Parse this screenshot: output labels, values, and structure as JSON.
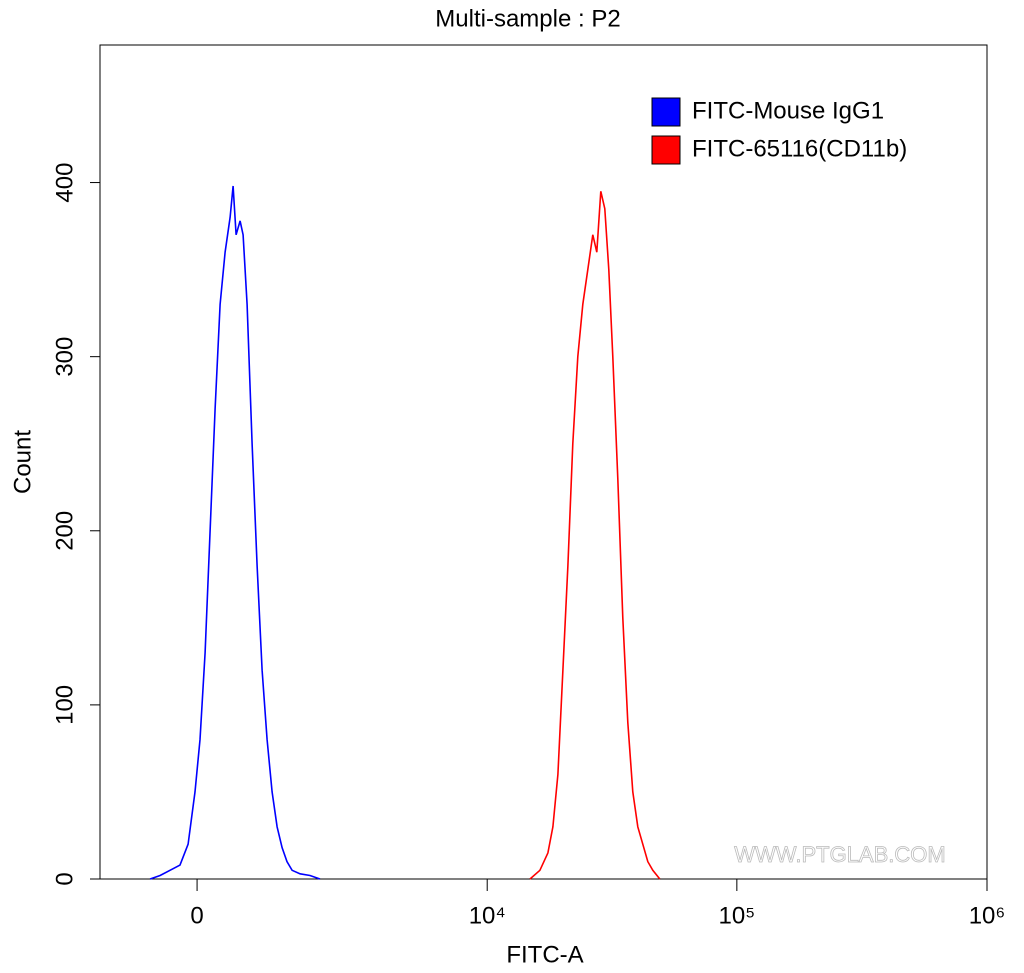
{
  "chart_data": {
    "type": "line",
    "title": "Multi-sample : P2",
    "xlabel": "FITC-A",
    "ylabel": "Count",
    "xscale": "biexponential",
    "watermark": "WWW.PTGLAB.COM",
    "legend": "upper right",
    "xlim": [
      -1415,
      1000000
    ],
    "xticks": [
      0,
      {
        "value": 10000,
        "label": "10⁴"
      },
      {
        "value": 100000,
        "label": "10⁵"
      },
      {
        "value": 1000000,
        "label": "10⁶"
      }
    ],
    "ylim": [
      0,
      479
    ],
    "yticks": [
      0,
      100,
      200,
      300,
      400
    ],
    "series": [
      {
        "name": "FITC-Mouse IgG1",
        "color": "#0000ff",
        "x": [
          -621,
          -483,
          -350,
          -219,
          -115,
          -26,
          38,
          103,
          167,
          232,
          297,
          363,
          429,
          470,
          511,
          565,
          607,
          664,
          735,
          808,
          883,
          960,
          1039,
          1119,
          1203,
          1288,
          1377,
          1525,
          1720,
          1932
        ],
        "values": [
          0,
          2,
          5,
          8,
          20,
          50,
          80,
          130,
          200,
          270,
          330,
          360,
          380,
          398,
          370,
          378,
          370,
          330,
          250,
          180,
          120,
          80,
          50,
          30,
          18,
          10,
          5,
          3,
          2,
          0
        ]
      },
      {
        "name": "FITC-65116(CD11b)",
        "color": "#ff0000",
        "x": [
          14860,
          16290,
          17540,
          18370,
          19230,
          20140,
          21090,
          22080,
          23120,
          24210,
          25350,
          26550,
          27540,
          28580,
          29650,
          30760,
          31920,
          33420,
          34990,
          36640,
          38370,
          40180,
          42070,
          44060,
          46130,
          49200
        ],
        "values": [
          0,
          5,
          15,
          30,
          60,
          120,
          180,
          250,
          300,
          330,
          350,
          370,
          360,
          395,
          385,
          350,
          300,
          230,
          150,
          90,
          50,
          30,
          20,
          10,
          5,
          0
        ]
      }
    ]
  }
}
